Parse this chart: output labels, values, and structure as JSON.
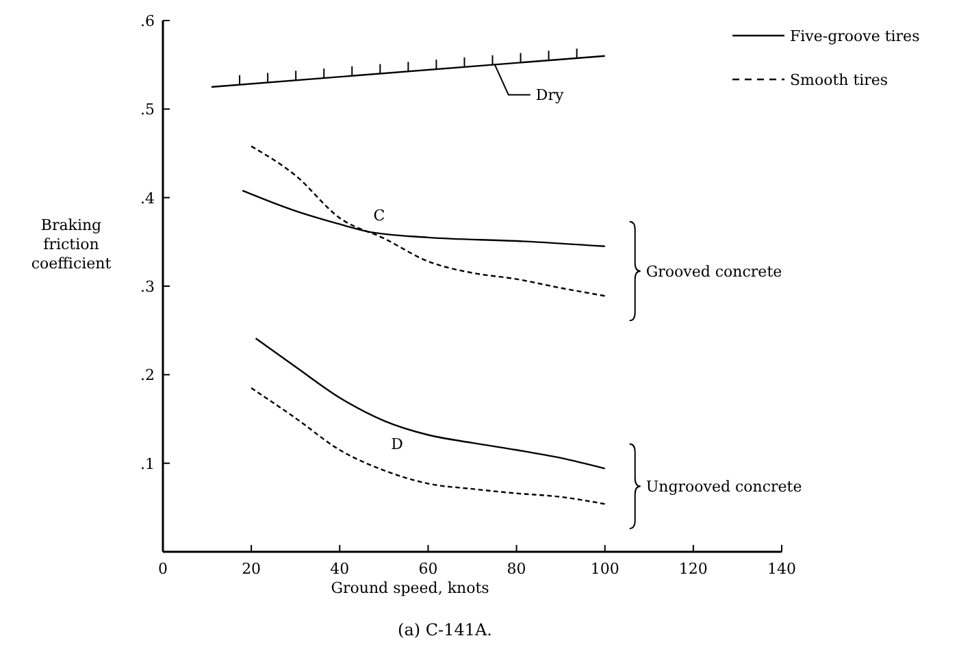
{
  "chart_data": {
    "type": "line",
    "title": "(a) C-141A.",
    "xlabel": "Ground speed, knots",
    "ylabel": "Braking friction coefficient",
    "xlim": [
      0,
      140
    ],
    "xticks": [
      0,
      20,
      40,
      60,
      80,
      100,
      120,
      140
    ],
    "ylim": [
      0,
      0.6
    ],
    "yticks": [
      {
        "value": 0,
        "label": null
      },
      {
        "value": 0.1,
        "label": ".1"
      },
      {
        "value": 0.2,
        "label": ".2"
      },
      {
        "value": 0.3,
        "label": ".3"
      },
      {
        "value": 0.4,
        "label": ".4"
      },
      {
        "value": 0.5,
        "label": ".5"
      },
      {
        "value": 0.6,
        "label": ".6"
      }
    ],
    "grid": false,
    "legend": "top right",
    "series": [
      {
        "name": "Dry",
        "color": "#000000",
        "line_style": "solid",
        "x": [
          11,
          100
        ],
        "values": [
          0.525,
          0.56
        ]
      },
      {
        "name": "Five-groove tires",
        "color": "#000000",
        "line_style": "solid",
        "x": [
          18,
          30,
          40,
          46,
          60,
          80,
          100
        ],
        "values": [
          0.408,
          0.385,
          0.37,
          0.362,
          0.355,
          0.351,
          0.345
        ]
      },
      {
        "name": "Smooth tires",
        "color": "#000000",
        "line_style": "dashed",
        "x": [
          20,
          30,
          40,
          50,
          60,
          70,
          80,
          90,
          100
        ],
        "values": [
          0.458,
          0.425,
          0.377,
          0.354,
          0.328,
          0.315,
          0.308,
          0.298,
          0.289
        ]
      },
      {
        "color": "#000000",
        "line_style": "solid",
        "x": [
          21,
          30,
          40,
          50,
          60,
          70,
          80,
          90,
          100
        ],
        "values": [
          0.241,
          0.209,
          0.174,
          0.148,
          0.132,
          0.123,
          0.115,
          0.106,
          0.094
        ]
      },
      {
        "color": "#000000",
        "line_style": "dashed",
        "x": [
          20,
          30,
          40,
          50,
          60,
          70,
          80,
          90,
          100
        ],
        "values": [
          0.185,
          0.151,
          0.115,
          0.092,
          0.077,
          0.071,
          0.066,
          0.062,
          0.054
        ]
      }
    ],
    "annotations": [
      "C",
      "D",
      "Grooved concrete",
      "Ungrooved concrete"
    ]
  }
}
